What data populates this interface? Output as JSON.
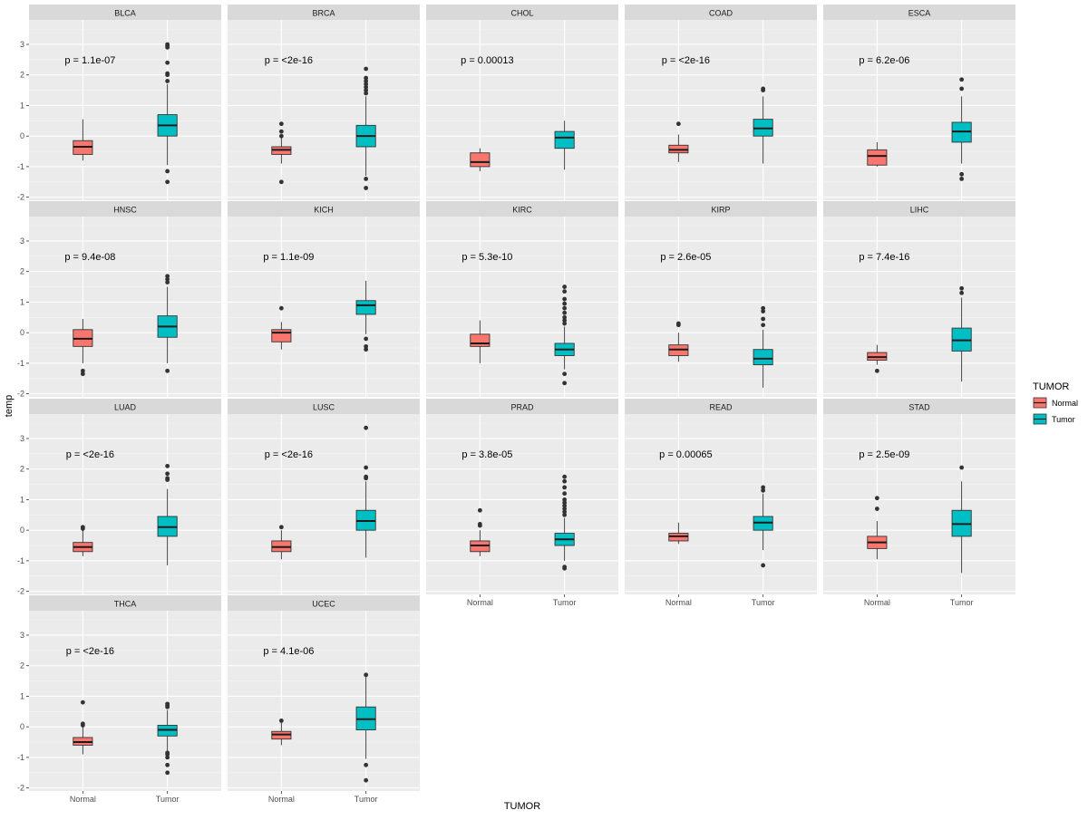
{
  "chart_data": {
    "type": "boxplot",
    "xlabel": "TUMOR",
    "ylabel": "temp",
    "ylim": [
      -2.1,
      3.8
    ],
    "y_ticks": [
      -2,
      -1,
      0,
      1,
      2,
      3
    ],
    "groups": [
      "Normal",
      "Tumor"
    ],
    "legend": {
      "title": "TUMOR",
      "position": "right",
      "entries": [
        {
          "label": "Normal",
          "color": "#F8766D"
        },
        {
          "label": "Tumor",
          "color": "#00BFC4"
        }
      ]
    },
    "facets": [
      {
        "name": "BLCA",
        "p": "p = 1.1e-07",
        "normal": {
          "min": -0.8,
          "q1": -0.6,
          "median": -0.35,
          "q3": -0.15,
          "max": 0.55,
          "outliers": []
        },
        "tumor": {
          "min": -0.95,
          "q1": 0.0,
          "median": 0.35,
          "q3": 0.7,
          "max": 1.7,
          "outliers": [
            3.0,
            2.95,
            2.9,
            2.4,
            2.05,
            2.0,
            1.8,
            -1.15,
            -1.5
          ]
        }
      },
      {
        "name": "BRCA",
        "p": "p = <2e-16",
        "normal": {
          "min": -0.9,
          "q1": -0.6,
          "median": -0.45,
          "q3": -0.35,
          "max": -0.05,
          "outliers": [
            0.4,
            0.15,
            0.0,
            -1.5
          ]
        },
        "tumor": {
          "min": -1.3,
          "q1": -0.35,
          "median": 0.0,
          "q3": 0.35,
          "max": 1.3,
          "outliers": [
            2.2,
            1.9,
            1.8,
            1.7,
            1.6,
            1.5,
            1.4,
            -1.4,
            -1.7
          ]
        }
      },
      {
        "name": "CHOL",
        "p": "p = 0.00013",
        "normal": {
          "min": -1.15,
          "q1": -1.0,
          "median": -0.85,
          "q3": -0.55,
          "max": -0.4,
          "outliers": []
        },
        "tumor": {
          "min": -1.1,
          "q1": -0.4,
          "median": -0.05,
          "q3": 0.15,
          "max": 0.5,
          "outliers": []
        }
      },
      {
        "name": "COAD",
        "p": "p = <2e-16",
        "normal": {
          "min": -0.85,
          "q1": -0.55,
          "median": -0.45,
          "q3": -0.3,
          "max": 0.05,
          "outliers": [
            0.4
          ]
        },
        "tumor": {
          "min": -0.9,
          "q1": 0.0,
          "median": 0.25,
          "q3": 0.55,
          "max": 1.3,
          "outliers": [
            1.55,
            1.5
          ]
        }
      },
      {
        "name": "ESCA",
        "p": "p = 6.2e-06",
        "normal": {
          "min": -1.0,
          "q1": -0.95,
          "median": -0.65,
          "q3": -0.45,
          "max": -0.2,
          "outliers": []
        },
        "tumor": {
          "min": -0.9,
          "q1": -0.2,
          "median": 0.15,
          "q3": 0.45,
          "max": 1.3,
          "outliers": [
            1.85,
            1.55,
            -1.25,
            -1.4
          ]
        }
      },
      {
        "name": "HNSC",
        "p": "p = 9.4e-08",
        "normal": {
          "min": -1.0,
          "q1": -0.45,
          "median": -0.2,
          "q3": 0.1,
          "max": 0.45,
          "outliers": [
            -1.25,
            -1.35
          ]
        },
        "tumor": {
          "min": -1.0,
          "q1": -0.15,
          "median": 0.2,
          "q3": 0.55,
          "max": 1.5,
          "outliers": [
            1.85,
            1.75,
            1.65,
            -1.25
          ]
        }
      },
      {
        "name": "KICH",
        "p": "p = 1.1e-09",
        "normal": {
          "min": -0.55,
          "q1": -0.3,
          "median": 0.0,
          "q3": 0.1,
          "max": 0.35,
          "outliers": [
            0.8
          ]
        },
        "tumor": {
          "min": -0.05,
          "q1": 0.6,
          "median": 0.9,
          "q3": 1.05,
          "max": 1.7,
          "outliers": [
            -0.2,
            -0.45,
            -0.55
          ]
        }
      },
      {
        "name": "KIRC",
        "p": "p = 5.3e-10",
        "normal": {
          "min": -1.0,
          "q1": -0.45,
          "median": -0.35,
          "q3": -0.05,
          "max": 0.4,
          "outliers": []
        },
        "tumor": {
          "min": -1.2,
          "q1": -0.75,
          "median": -0.55,
          "q3": -0.35,
          "max": 0.2,
          "outliers": [
            1.5,
            1.35,
            1.1,
            0.95,
            0.8,
            0.65,
            0.5,
            0.4,
            0.3,
            -1.35,
            -1.65
          ]
        }
      },
      {
        "name": "KIRP",
        "p": "p = 2.6e-05",
        "normal": {
          "min": -0.95,
          "q1": -0.75,
          "median": -0.55,
          "q3": -0.4,
          "max": 0.0,
          "outliers": [
            0.3,
            0.25
          ]
        },
        "tumor": {
          "min": -1.8,
          "q1": -1.05,
          "median": -0.85,
          "q3": -0.55,
          "max": 0.1,
          "outliers": [
            0.8,
            0.7,
            0.45,
            0.25
          ]
        }
      },
      {
        "name": "LIHC",
        "p": "p = 7.4e-16",
        "normal": {
          "min": -1.05,
          "q1": -0.9,
          "median": -0.8,
          "q3": -0.65,
          "max": -0.4,
          "outliers": [
            -1.25
          ]
        },
        "tumor": {
          "min": -1.6,
          "q1": -0.6,
          "median": -0.25,
          "q3": 0.15,
          "max": 1.15,
          "outliers": [
            1.45,
            1.3
          ]
        }
      },
      {
        "name": "LUAD",
        "p": "p = <2e-16",
        "normal": {
          "min": -0.85,
          "q1": -0.7,
          "median": -0.55,
          "q3": -0.4,
          "max": 0.0,
          "outliers": [
            0.1,
            0.05
          ]
        },
        "tumor": {
          "min": -1.15,
          "q1": -0.2,
          "median": 0.1,
          "q3": 0.45,
          "max": 1.35,
          "outliers": [
            2.1,
            1.85,
            1.7,
            1.65
          ]
        }
      },
      {
        "name": "LUSC",
        "p": "p = <2e-16",
        "normal": {
          "min": -0.95,
          "q1": -0.7,
          "median": -0.55,
          "q3": -0.35,
          "max": 0.0,
          "outliers": [
            0.1
          ]
        },
        "tumor": {
          "min": -0.9,
          "q1": 0.0,
          "median": 0.3,
          "q3": 0.65,
          "max": 1.6,
          "outliers": [
            3.35,
            2.05,
            1.75,
            1.7
          ]
        }
      },
      {
        "name": "PRAD",
        "p": "p = 3.8e-05",
        "normal": {
          "min": -0.85,
          "q1": -0.7,
          "median": -0.5,
          "q3": -0.35,
          "max": 0.0,
          "outliers": [
            0.65,
            0.2,
            0.15
          ]
        },
        "tumor": {
          "min": -1.0,
          "q1": -0.5,
          "median": -0.3,
          "q3": -0.1,
          "max": 0.4,
          "outliers": [
            1.75,
            1.6,
            1.4,
            1.2,
            1.0,
            0.9,
            0.8,
            0.7,
            0.6,
            0.5,
            -1.2,
            -1.25
          ]
        }
      },
      {
        "name": "READ",
        "p": "p = 0.00065",
        "normal": {
          "min": -0.45,
          "q1": -0.35,
          "median": -0.2,
          "q3": -0.1,
          "max": 0.25,
          "outliers": []
        },
        "tumor": {
          "min": -0.65,
          "q1": 0.0,
          "median": 0.25,
          "q3": 0.45,
          "max": 1.2,
          "outliers": [
            1.4,
            1.3,
            -1.15
          ]
        }
      },
      {
        "name": "STAD",
        "p": "p = 2.5e-09",
        "normal": {
          "min": -0.95,
          "q1": -0.6,
          "median": -0.4,
          "q3": -0.2,
          "max": 0.3,
          "outliers": [
            1.05,
            0.7
          ]
        },
        "tumor": {
          "min": -1.4,
          "q1": -0.2,
          "median": 0.2,
          "q3": 0.65,
          "max": 1.6,
          "outliers": [
            2.05
          ]
        }
      },
      {
        "name": "THCA",
        "p": "p = <2e-16",
        "normal": {
          "min": -0.9,
          "q1": -0.6,
          "median": -0.5,
          "q3": -0.35,
          "max": 0.0,
          "outliers": [
            0.8,
            0.1,
            0.05
          ]
        },
        "tumor": {
          "min": -0.8,
          "q1": -0.3,
          "median": -0.1,
          "q3": 0.05,
          "max": 0.55,
          "outliers": [
            0.75,
            0.7,
            0.65,
            -0.85,
            -0.9,
            -1.0,
            -1.25,
            -1.5
          ]
        }
      },
      {
        "name": "UCEC",
        "p": "p = 4.1e-06",
        "normal": {
          "min": -0.6,
          "q1": -0.4,
          "median": -0.25,
          "q3": -0.15,
          "max": 0.15,
          "outliers": [
            0.2
          ]
        },
        "tumor": {
          "min": -1.05,
          "q1": -0.1,
          "median": 0.25,
          "q3": 0.65,
          "max": 1.65,
          "outliers": [
            1.7,
            -1.25,
            -1.75
          ]
        }
      }
    ]
  }
}
